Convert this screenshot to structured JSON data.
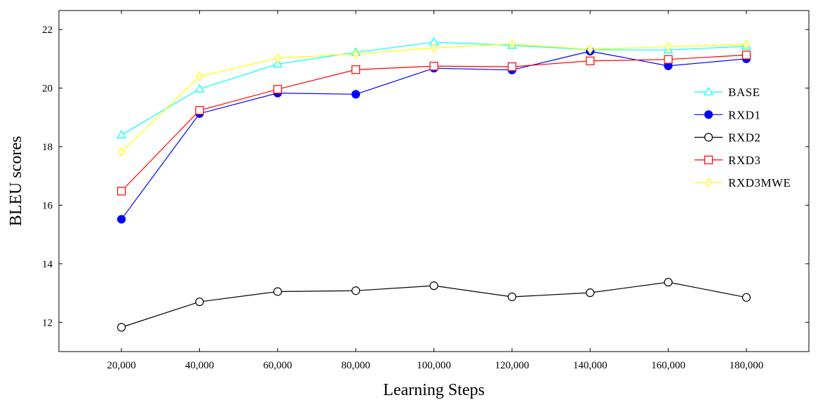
{
  "chart_data": {
    "type": "line",
    "xlabel": "Learning Steps",
    "ylabel": "BLEU scores",
    "x": [
      20000,
      40000,
      60000,
      80000,
      100000,
      120000,
      140000,
      160000,
      180000
    ],
    "x_tick_labels": [
      "20,000",
      "40,000",
      "60,000",
      "80,000",
      "100,000",
      "120,000",
      "140,000",
      "160,000",
      "180,000"
    ],
    "y_ticks": [
      12,
      14,
      16,
      18,
      20,
      22
    ],
    "y_tick_labels": [
      "12",
      "14",
      "16",
      "18",
      "20",
      "22"
    ],
    "xlim": [
      4000,
      196000
    ],
    "ylim": [
      11.0,
      22.65
    ],
    "grid": false,
    "legend_position": "right",
    "series": [
      {
        "name": "BASE",
        "color": "#00ffff",
        "marker": "triangle-open",
        "values": [
          18.4,
          19.97,
          20.82,
          21.22,
          21.57,
          21.46,
          21.31,
          21.3,
          21.43
        ]
      },
      {
        "name": "RXD1",
        "color": "#0000ff",
        "marker": "circle-filled",
        "values": [
          15.52,
          19.13,
          19.83,
          19.79,
          20.68,
          20.62,
          21.26,
          20.76,
          21.0
        ]
      },
      {
        "name": "RXD2",
        "color": "#000000",
        "marker": "circle-open",
        "values": [
          11.83,
          12.7,
          13.05,
          13.08,
          13.25,
          12.87,
          13.01,
          13.37,
          12.85
        ]
      },
      {
        "name": "RXD3",
        "color": "#ff0000",
        "marker": "square-open",
        "values": [
          16.48,
          19.24,
          19.96,
          20.63,
          20.75,
          20.73,
          20.93,
          20.98,
          21.13
        ]
      },
      {
        "name": "RXD3MWE",
        "color": "#ffff00",
        "marker": "diamond-open",
        "values": [
          17.82,
          20.4,
          21.02,
          21.17,
          21.37,
          21.51,
          21.32,
          21.42,
          21.49
        ]
      }
    ]
  }
}
